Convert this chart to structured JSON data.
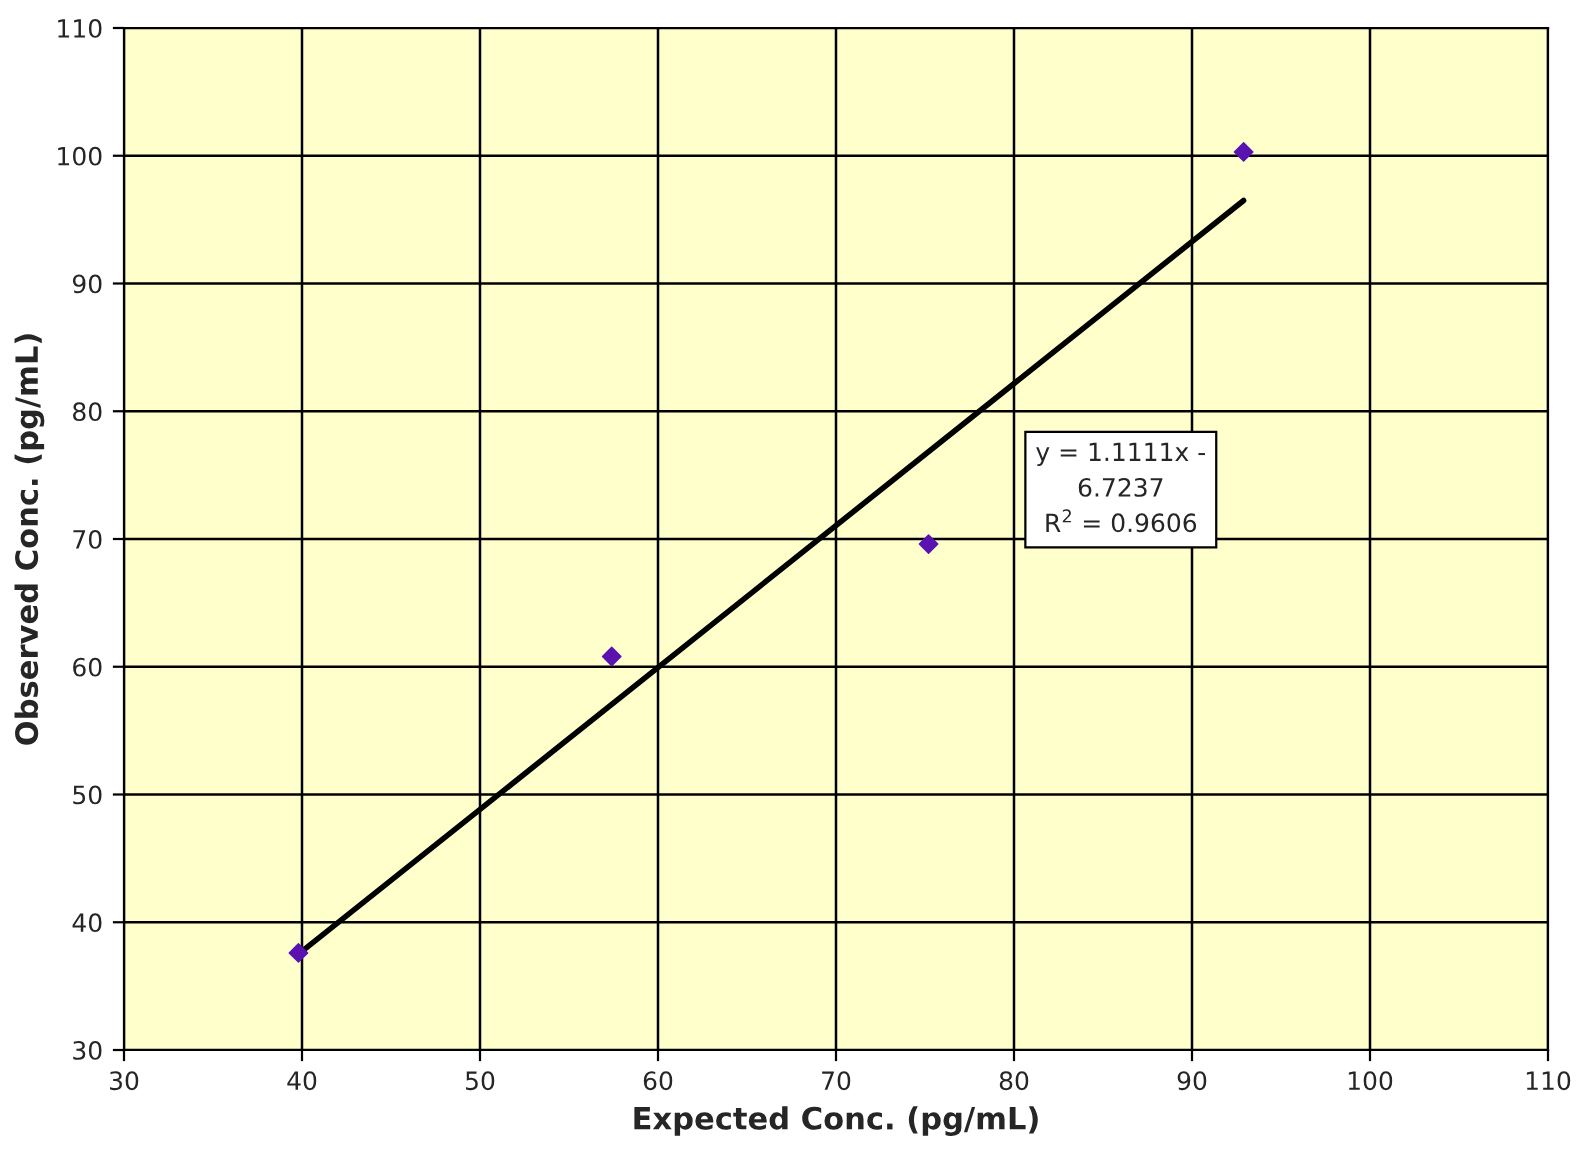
{
  "chart_data": {
    "type": "scatter",
    "xlabel": "Expected Conc. (pg/mL)",
    "ylabel": "Observed Conc. (pg/mL)",
    "series": [
      {
        "color": "#5a12b0",
        "x": [
          39.8,
          57.4,
          75.2,
          92.9
        ],
        "values": [
          37.6,
          60.8,
          69.6,
          100.3
        ],
        "marker": "diamond"
      },
      {
        "type": "line",
        "color": "#000000",
        "x": [
          39.8,
          92.9
        ],
        "values": [
          37.5,
          96.5
        ],
        "marker": "none",
        "line_style": "solid"
      }
    ],
    "annotations": [
      "y = 1.1111x -\n6.7237\nR$^{2}$ = 0.9606"
    ],
    "xlim": [
      30,
      110
    ],
    "xticks": [
      30,
      40,
      50,
      60,
      70,
      80,
      90,
      100,
      110
    ],
    "ylim": [
      30,
      110
    ],
    "yticks": [
      30,
      40,
      50,
      60,
      70,
      80,
      90,
      100,
      110
    ],
    "grid": true,
    "legend": false
  }
}
